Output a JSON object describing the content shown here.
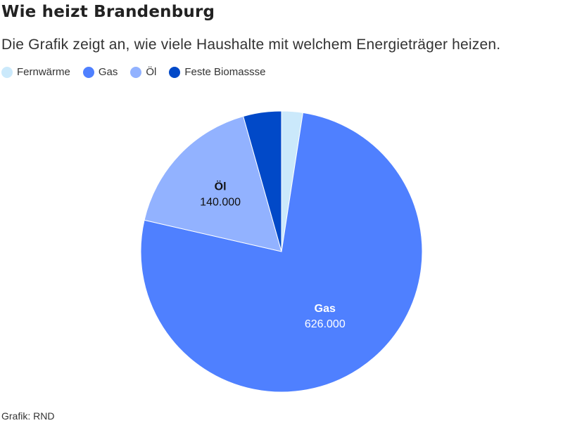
{
  "header": {
    "title": "Wie heizt Brandenburg",
    "subtitle": "Die Grafik zeigt an, wie viele Haushalte mit welchem Energieträger heizen."
  },
  "footer": {
    "source": "Grafik: RND"
  },
  "chart_data": {
    "type": "pie",
    "slices": [
      {
        "name": "Fernwärme",
        "value": 20000,
        "color": "#cbe9fb",
        "label_name": "",
        "label_value": "",
        "label_color": ""
      },
      {
        "name": "Gas",
        "value": 626000,
        "color": "#4f80ff",
        "label_name": "Gas",
        "label_value": "626.000",
        "label_color": "#ffffff"
      },
      {
        "name": "Öl",
        "value": 140000,
        "color": "#92b2ff",
        "label_name": "Öl",
        "label_value": "140.000",
        "label_color": "#111111"
      },
      {
        "name": "Feste Biomassse",
        "value": 36000,
        "color": "#0149c8",
        "label_name": "",
        "label_value": "",
        "label_color": ""
      }
    ],
    "legend": [
      "Fernwärme",
      "Gas",
      "Öl",
      "Feste Biomassse"
    ],
    "legend_position": "top-left"
  }
}
